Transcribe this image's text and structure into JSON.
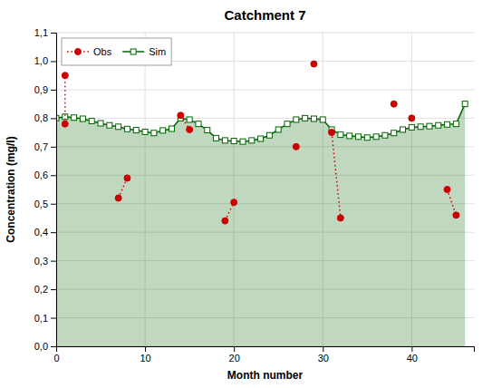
{
  "chart_data": {
    "type": "line",
    "title": "Catchment 7",
    "xlabel": "Month number",
    "ylabel": "Concentration (mg/l)",
    "xlim": [
      0,
      47
    ],
    "ylim": [
      0.0,
      1.1
    ],
    "xticks": [
      0,
      10,
      20,
      30,
      40
    ],
    "yticks": [
      {
        "value": 0.0,
        "label": "0,0"
      },
      {
        "value": 0.1,
        "label": "0,1"
      },
      {
        "value": 0.2,
        "label": "0,2"
      },
      {
        "value": 0.3,
        "label": "0,3"
      },
      {
        "value": 0.4,
        "label": "0,4"
      },
      {
        "value": 0.5,
        "label": "0,5"
      },
      {
        "value": 0.6,
        "label": "0,6"
      },
      {
        "value": 0.7,
        "label": "0,7"
      },
      {
        "value": 0.8,
        "label": "0,8"
      },
      {
        "value": 0.9,
        "label": "0,9"
      },
      {
        "value": 1.0,
        "label": "1,0"
      },
      {
        "value": 1.1,
        "label": "1,1"
      }
    ],
    "grid": true,
    "legend": "upper left",
    "series": [
      {
        "name": "Obs",
        "type": "line",
        "color": "#cc0000",
        "marker": "circle",
        "line_style": "dotted",
        "x": [
          1,
          1,
          null,
          7,
          8,
          null,
          14,
          15,
          null,
          19,
          20,
          null,
          27,
          null,
          29,
          null,
          31,
          32,
          null,
          38,
          null,
          40,
          null,
          44,
          45
        ],
        "values": [
          0.78,
          0.95,
          null,
          0.52,
          0.59,
          null,
          0.81,
          0.76,
          null,
          0.44,
          0.505,
          null,
          0.7,
          null,
          0.99,
          null,
          0.75,
          0.45,
          null,
          0.85,
          null,
          0.8,
          null,
          0.55,
          0.46
        ]
      },
      {
        "name": "Sim",
        "type": "area",
        "color": "#006400",
        "marker": "square",
        "line_style": "solid",
        "x": [
          0,
          1,
          2,
          3,
          4,
          5,
          6,
          7,
          8,
          9,
          10,
          11,
          12,
          13,
          14,
          15,
          16,
          17,
          18,
          19,
          20,
          21,
          22,
          23,
          24,
          25,
          26,
          27,
          28,
          29,
          30,
          31,
          32,
          33,
          34,
          35,
          36,
          37,
          38,
          39,
          40,
          41,
          42,
          43,
          44,
          45,
          46
        ],
        "values": [
          0.8,
          0.805,
          0.802,
          0.798,
          0.79,
          0.782,
          0.775,
          0.77,
          0.762,
          0.758,
          0.752,
          0.748,
          0.757,
          0.763,
          0.8,
          0.795,
          0.78,
          0.758,
          0.73,
          0.722,
          0.72,
          0.718,
          0.722,
          0.728,
          0.74,
          0.76,
          0.78,
          0.795,
          0.8,
          0.798,
          0.795,
          0.76,
          0.742,
          0.738,
          0.735,
          0.732,
          0.735,
          0.74,
          0.748,
          0.76,
          0.768,
          0.77,
          0.772,
          0.775,
          0.778,
          0.78,
          0.85
        ]
      }
    ]
  }
}
